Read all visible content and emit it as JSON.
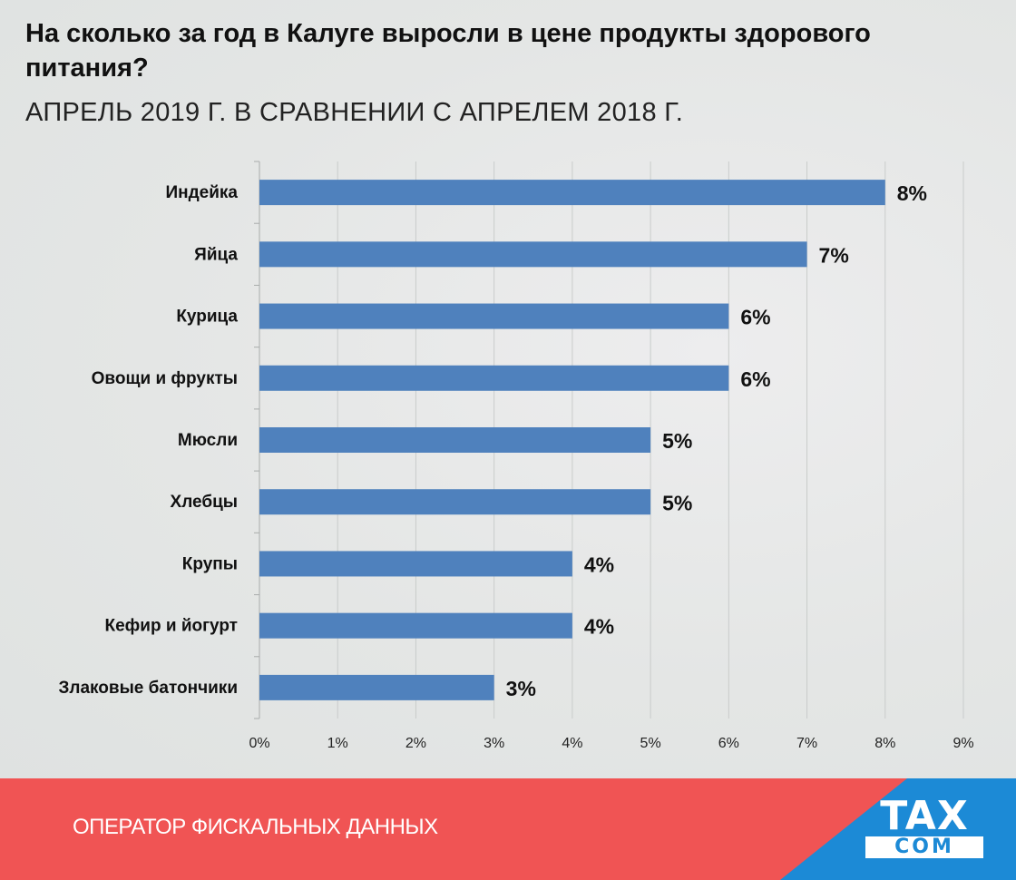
{
  "header": {
    "title": "На сколько за год в Калуге выросли в цене продукты здорового питания?",
    "subtitle": "АПРЕЛЬ 2019 Г. В СРАВНЕНИИ С АПРЕЛЕМ 2018 Г."
  },
  "chart_data": {
    "type": "bar",
    "orientation": "horizontal",
    "title": "",
    "xlabel": "",
    "ylabel": "",
    "categories": [
      "Индейка",
      "Яйца",
      "Курица",
      "Овощи и фрукты",
      "Мюсли",
      "Хлебцы",
      "Крупы",
      "Кефир и йогурт",
      "Злаковые батончики"
    ],
    "values": [
      8,
      7,
      6,
      6,
      5,
      5,
      4,
      4,
      3
    ],
    "value_labels": [
      "8%",
      "7%",
      "6%",
      "6%",
      "5%",
      "5%",
      "4%",
      "4%",
      "3%"
    ],
    "xlim": [
      0,
      9
    ],
    "xticks": [
      "0%",
      "1%",
      "2%",
      "3%",
      "4%",
      "5%",
      "6%",
      "7%",
      "8%",
      "9%"
    ],
    "grid": "vertical",
    "bar_color": "#4f81bd"
  },
  "footer": {
    "operator_text": "ОПЕРАТОР ФИСКАЛЬНЫХ ДАННЫХ",
    "logo_top": "TAX",
    "logo_bottom": "COM",
    "red_color": "#f05454",
    "blue_color": "#1c8ad6"
  }
}
